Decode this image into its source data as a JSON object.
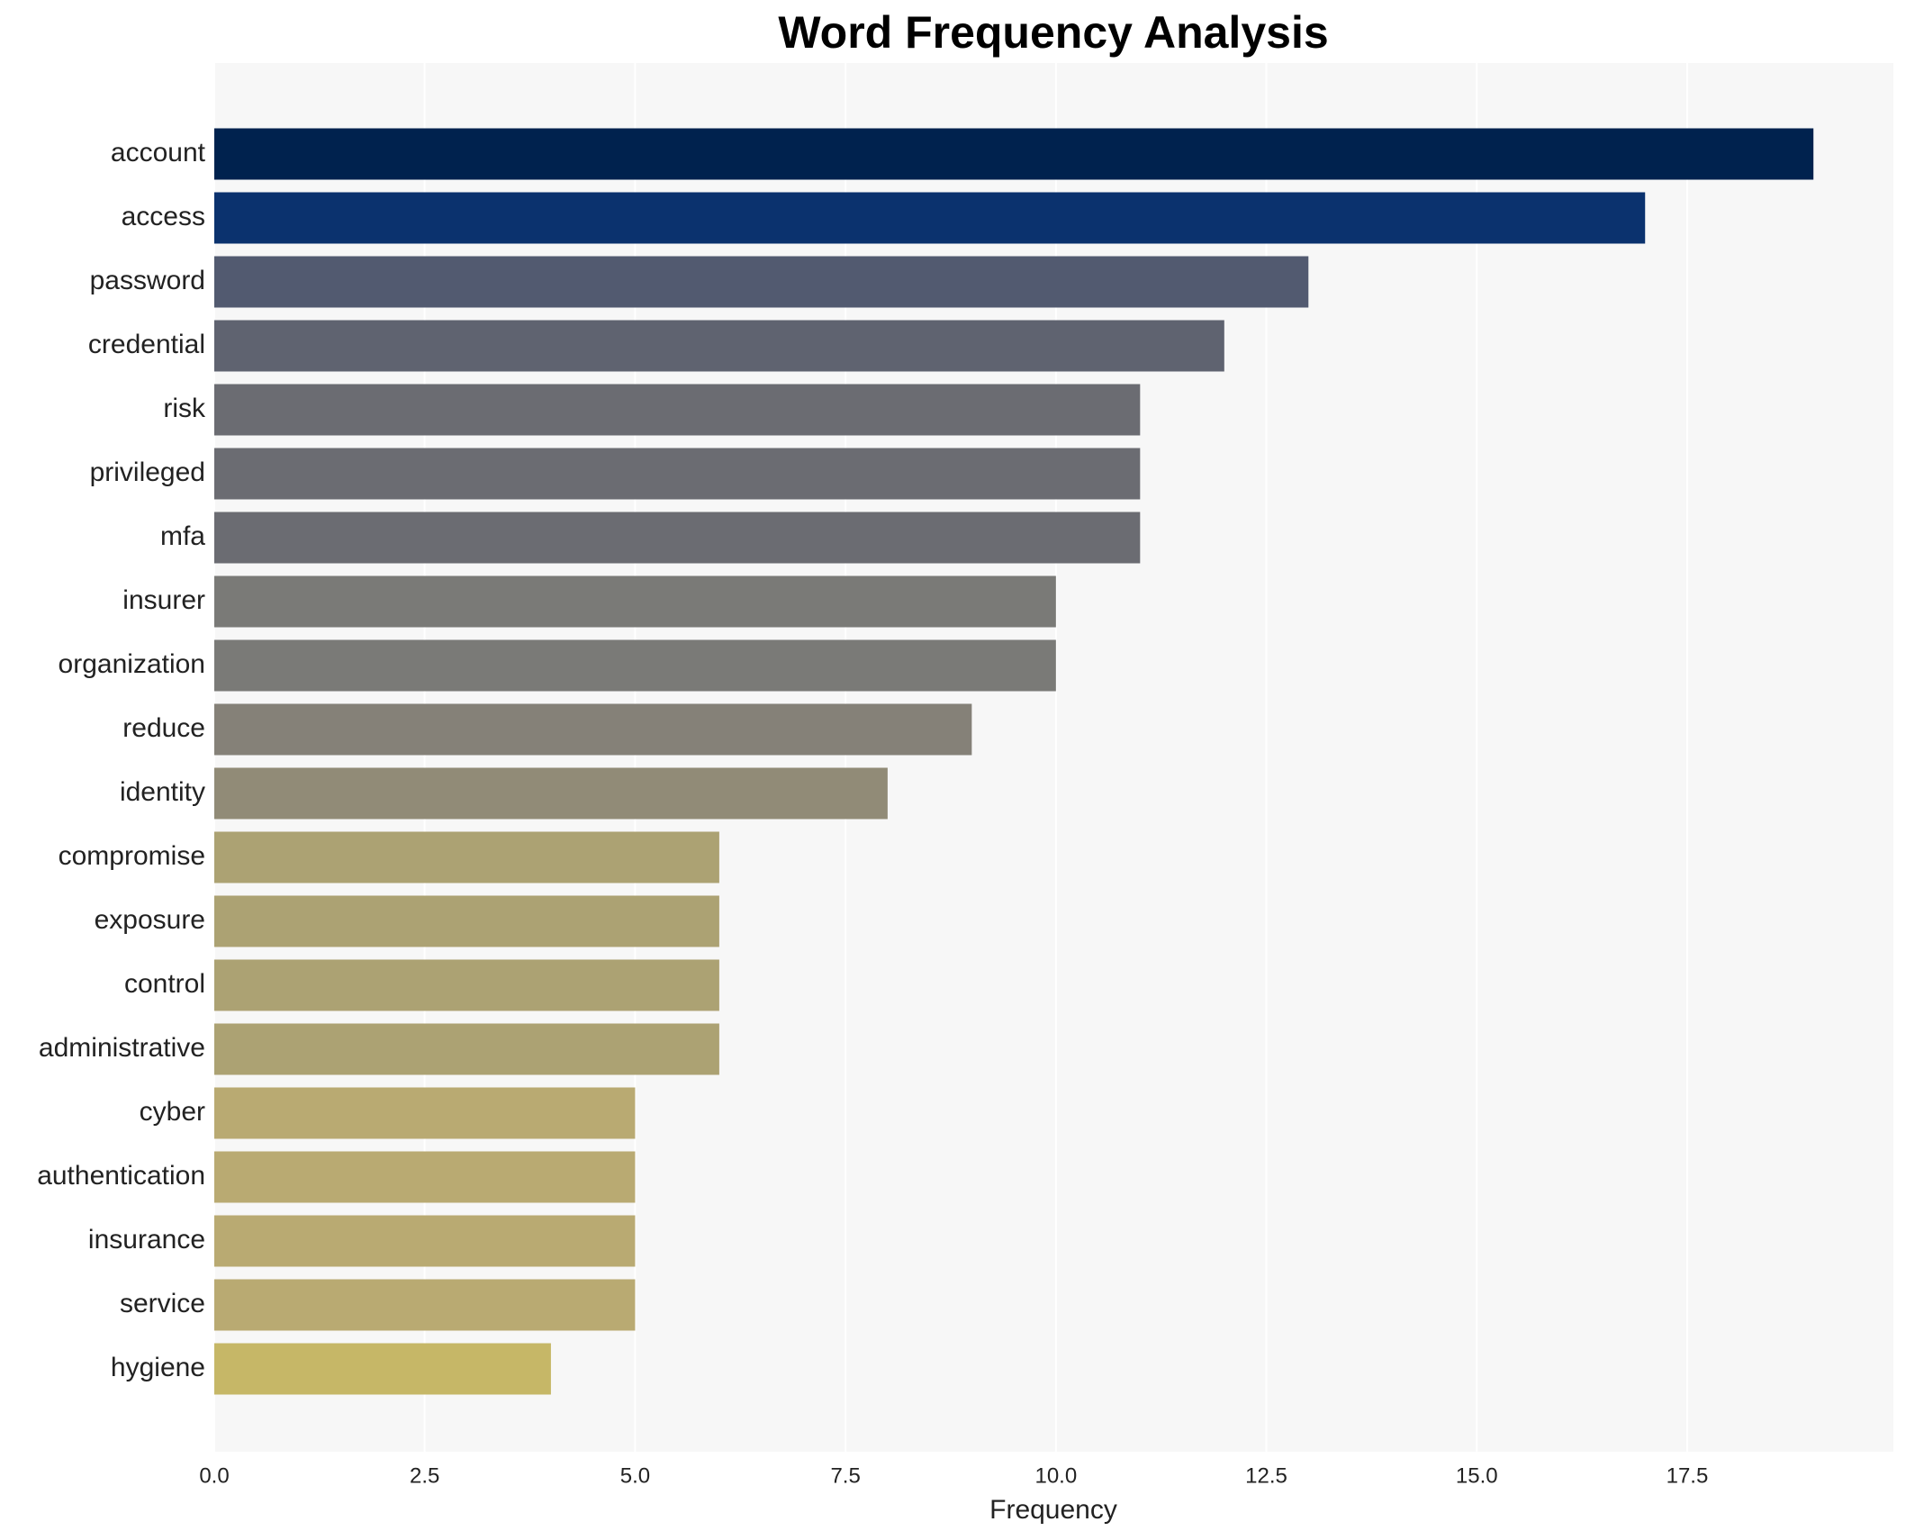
{
  "chart_data": {
    "type": "bar",
    "orientation": "horizontal",
    "title": "Word Frequency Analysis",
    "x_label": "Frequency",
    "categories": [
      "account",
      "access",
      "password",
      "credential",
      "risk",
      "privileged",
      "mfa",
      "insurer",
      "organization",
      "reduce",
      "identity",
      "compromise",
      "exposure",
      "control",
      "administrative",
      "cyber",
      "authentication",
      "insurance",
      "service",
      "hygiene"
    ],
    "values": [
      19,
      17,
      13,
      12,
      11,
      11,
      11,
      10,
      10,
      9,
      8,
      6,
      6,
      6,
      6,
      5,
      5,
      5,
      5,
      4
    ],
    "colors": [
      "#00224e",
      "#0b326e",
      "#525a70",
      "#5f6370",
      "#6b6c72",
      "#6b6c72",
      "#6b6c72",
      "#7a7a77",
      "#7a7a77",
      "#858178",
      "#918b77",
      "#aca273",
      "#aca273",
      "#aca273",
      "#aca273",
      "#b9aa72",
      "#b9aa72",
      "#b9aa72",
      "#b9aa72",
      "#c6b767"
    ],
    "xlim": [
      0,
      19.95
    ],
    "xticks": [
      {
        "value": 0,
        "label": "0.0"
      },
      2.5,
      {
        "value": 5,
        "label": "5.0"
      },
      7.5,
      {
        "value": 10,
        "label": "10.0"
      },
      12.5,
      {
        "value": 15,
        "label": "15.0"
      },
      17.5
    ],
    "grid": true
  }
}
